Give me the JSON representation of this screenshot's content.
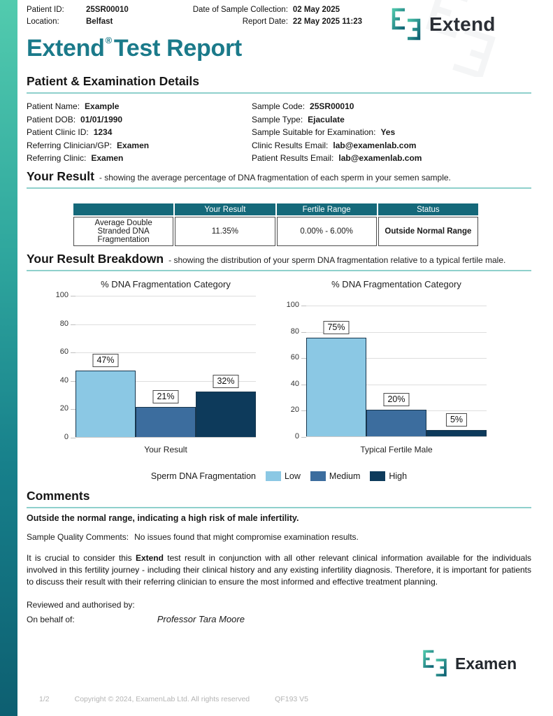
{
  "header": {
    "patient_id_label": "Patient ID:",
    "patient_id_value": "25SR00010",
    "location_label": "Location:",
    "location_value": "Belfast",
    "collection_label": "Date of Sample Collection:",
    "collection_value": "02 May 2025",
    "report_date_label": "Report Date:",
    "report_date_value": "22 May 2025 11:23",
    "brand": "Extend"
  },
  "title": {
    "brand": "Extend",
    "registered": "®",
    "rest": "Test Report"
  },
  "patient_details": {
    "heading": "Patient & Examination Details",
    "left": [
      {
        "label": "Patient Name:",
        "value": "Example"
      },
      {
        "label": "Patient DOB:",
        "value": "01/01/1990"
      },
      {
        "label": "Patient Clinic ID:",
        "value": "1234"
      },
      {
        "label": "Referring Clinician/GP:",
        "value": "Examen"
      },
      {
        "label": "Referring Clinic:",
        "value": "Examen"
      }
    ],
    "right": [
      {
        "label": "Sample Code:",
        "value": "25SR00010"
      },
      {
        "label": "Sample Type:",
        "value": "Ejaculate"
      },
      {
        "label": "Sample Suitable for Examination:",
        "value": "Yes"
      },
      {
        "label": "Clinic Results Email:",
        "value": "lab@examenlab.com"
      },
      {
        "label": "Patient Results Email:",
        "value": "lab@examenlab.com"
      }
    ]
  },
  "your_result": {
    "heading": "Your Result",
    "subtitle": "- showing the average percentage of DNA fragmentation of each sperm in your semen sample.",
    "table": {
      "headers": [
        "",
        "Your Result",
        "Fertile Range",
        "Status"
      ],
      "row": {
        "metric": "Average Double Stranded DNA Fragmentation",
        "your_result": "11.35%",
        "fertile_range": "0.00% - 6.00%",
        "status": "Outside Normal Range"
      }
    }
  },
  "breakdown": {
    "heading": "Your Result Breakdown",
    "subtitle": "- showing the distribution of your sperm DNA fragmentation relative to a typical fertile male.",
    "legend": {
      "label": "Sperm DNA Fragmentation",
      "items": [
        {
          "label": "Low",
          "color": "#8BC8E4"
        },
        {
          "label": "Medium",
          "color": "#3C6D9E"
        },
        {
          "label": "High",
          "color": "#0D3A5B"
        }
      ]
    }
  },
  "chart_data": [
    {
      "type": "bar",
      "title": "% DNA Fragmentation Category",
      "categories": [
        "Low",
        "Medium",
        "High"
      ],
      "values": [
        47,
        21,
        32
      ],
      "labels": [
        "47%",
        "21%",
        "32%"
      ],
      "xlabel": "Your Result",
      "ylabel": "",
      "ylim": [
        0,
        100
      ],
      "yticks": [
        0,
        20,
        40,
        60,
        80,
        100
      ],
      "grid": true,
      "legend_position": "bottom-shared"
    },
    {
      "type": "bar",
      "title": "% DNA Fragmentation Category",
      "categories": [
        "Low",
        "Medium",
        "High"
      ],
      "values": [
        75,
        20,
        5
      ],
      "labels": [
        "75%",
        "20%",
        "5%"
      ],
      "xlabel": "Typical Fertile Male",
      "ylabel": "",
      "ylim": [
        0,
        100
      ],
      "yticks": [
        0,
        20,
        40,
        60,
        80,
        100
      ],
      "grid": true,
      "legend_position": "bottom-shared"
    }
  ],
  "comments": {
    "heading": "Comments",
    "result_comment": "Outside the normal range, indicating a high risk of male infertility.",
    "sample_quality_label": "Sample Quality Comments:",
    "sample_quality_value": "No issues found that might compromise examination results.",
    "paragraph_pre": "It is crucial to consider this ",
    "paragraph_bold": "Extend",
    "paragraph_post": " test result in conjunction with all other relevant clinical information available for the individuals involved in this fertility journey - including their clinical history and any existing infertility diagnosis. Therefore, it is important for patients to discuss their result with their referring clinician to ensure the most informed and effective treatment planning.",
    "reviewed_label": "Reviewed and authorised by:",
    "on_behalf_label": "On behalf of:",
    "signature": "Professor Tara Moore"
  },
  "footer": {
    "page_number": "1/2",
    "copyright": "Copyright © 2024, ExamenLab Ltd. All rights reserved",
    "doc_code": "QF193 V5",
    "brand": "Examen"
  },
  "colors": {
    "accent_teal": "#1B7A8A",
    "table_header": "#15697A",
    "heading_underline": "#8FD0CC",
    "sidebar_gradient_top": "#52CBAE",
    "sidebar_gradient_bottom": "#0D5F71",
    "bar_border": "#17364E"
  }
}
